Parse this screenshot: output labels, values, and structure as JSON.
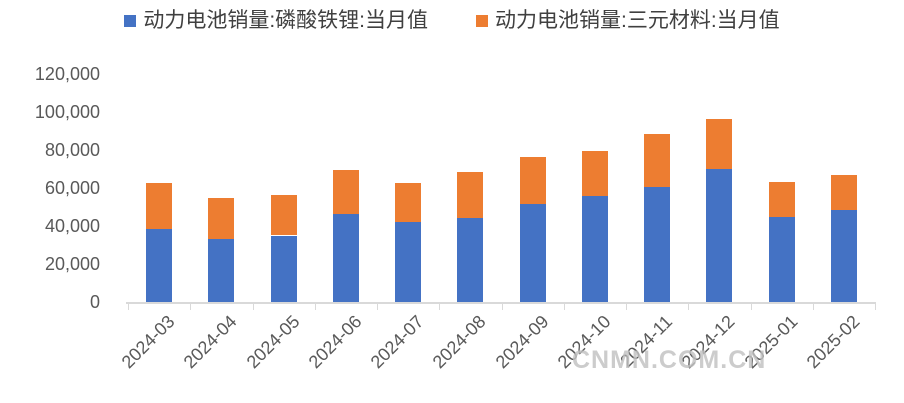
{
  "watermark": "CNMN.COM.CN",
  "colors": {
    "series_lfp": "#4472C4",
    "series_ternary": "#ED7D31",
    "axis_line": "#d9d9d9",
    "axis_text": "#595959",
    "legend_text": "#404040",
    "watermark_text": "#c1c1c1"
  },
  "chart_data": {
    "type": "bar",
    "stacked": true,
    "title": "",
    "xlabel": "",
    "ylabel": "",
    "grid": false,
    "legend_position": "top",
    "categories": [
      "2024-03",
      "2024-04",
      "2024-05",
      "2024-06",
      "2024-07",
      "2024-08",
      "2024-09",
      "2024-10",
      "2024-11",
      "2024-12",
      "2025-01",
      "2025-02"
    ],
    "series": [
      {
        "name": "动力电池销量:磷酸铁锂:当月值",
        "color": "#4472C4",
        "values": [
          38500,
          33000,
          35000,
          46500,
          42000,
          44000,
          51500,
          56000,
          60500,
          70000,
          44500,
          48500
        ]
      },
      {
        "name": "动力电池销量:三元材料:当月值",
        "color": "#ED7D31",
        "values": [
          24000,
          21500,
          21500,
          23000,
          20500,
          24500,
          25000,
          23500,
          28000,
          26500,
          18500,
          18500
        ]
      }
    ],
    "totals": [
      62500,
      54500,
      56500,
      69500,
      62500,
      68500,
      76500,
      79500,
      88500,
      96500,
      63000,
      67000
    ],
    "ylim": [
      0,
      120000
    ],
    "yticks": [
      0,
      20000,
      40000,
      60000,
      80000,
      100000,
      120000
    ],
    "ytick_labels": [
      "0",
      "20,000",
      "40,000",
      "60,000",
      "80,000",
      "100,000",
      "120,000"
    ]
  }
}
